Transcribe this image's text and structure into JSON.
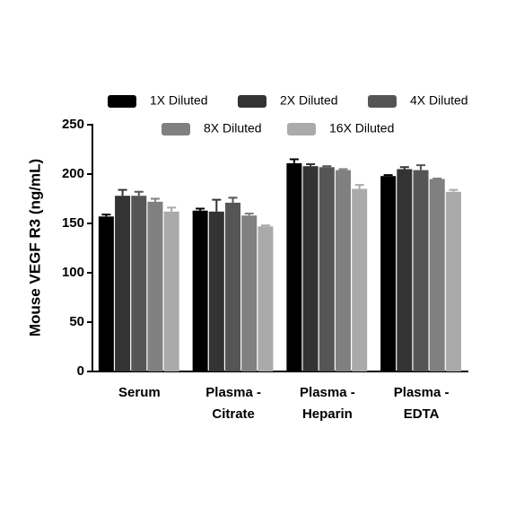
{
  "chart_data": {
    "type": "bar",
    "y_label": "Mouse VEGF R3 (ng/mL)",
    "categories": [
      [
        "Serum"
      ],
      [
        "Plasma -",
        "Citrate"
      ],
      [
        "Plasma -",
        "Heparin"
      ],
      [
        "Plasma -",
        "EDTA"
      ]
    ],
    "series": [
      {
        "name": "1X Diluted",
        "color": "#000000",
        "values": [
          157,
          163,
          211,
          198
        ],
        "errors": [
          2,
          2,
          4,
          1
        ]
      },
      {
        "name": "2X Diluted",
        "color": "#333333",
        "values": [
          178,
          162,
          208,
          205
        ],
        "errors": [
          6,
          12,
          2,
          2
        ]
      },
      {
        "name": "4X Diluted",
        "color": "#555555",
        "values": [
          178,
          171,
          207,
          204
        ],
        "errors": [
          4,
          5,
          1,
          5
        ]
      },
      {
        "name": "8X Diluted",
        "color": "#808080",
        "values": [
          172,
          158,
          204,
          195
        ],
        "errors": [
          3,
          2,
          1,
          0.5
        ]
      },
      {
        "name": "16X Diluted",
        "color": "#aaaaaa",
        "values": [
          162,
          147,
          185,
          182
        ],
        "errors": [
          4,
          1,
          4,
          2
        ]
      }
    ],
    "ylim": [
      0,
      250
    ],
    "yticks": [
      0,
      50,
      100,
      150,
      200,
      250
    ]
  }
}
